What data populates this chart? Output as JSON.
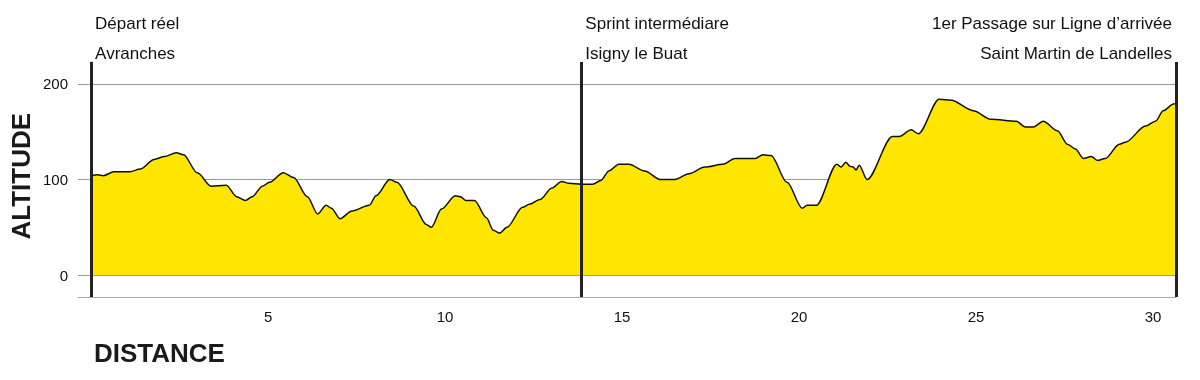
{
  "chart_data": {
    "type": "area",
    "xlabel": "DISTANCE",
    "ylabel": "ALTITUDE",
    "xlim": [
      -0.37,
      30.65
    ],
    "ylim": [
      -23,
      223
    ],
    "xticks": [
      5,
      10,
      15,
      20,
      25,
      30
    ],
    "yticks": [
      0,
      100,
      200
    ],
    "grid": "y",
    "marker": "none",
    "line_style": "solid",
    "series": [
      {
        "color": "#ffe600",
        "x": [
          0,
          0.18,
          0.35,
          0.64,
          1.1,
          1.39,
          1.78,
          2.07,
          2.41,
          2.61,
          3.0,
          3.39,
          3.82,
          4.11,
          4.36,
          4.55,
          4.84,
          5.04,
          5.43,
          5.72,
          6.11,
          6.4,
          6.64,
          6.79,
          7.03,
          7.37,
          7.86,
          8.05,
          8.44,
          8.64,
          9.12,
          9.47,
          9.61,
          9.9,
          10.29,
          10.44,
          10.58,
          10.83,
          11.17,
          11.36,
          11.54,
          11.75,
          12.19,
          12.38,
          12.68,
          13.02,
          13.29,
          13.5,
          13.85,
          14.17,
          14.4,
          14.63,
          14.91,
          15.19,
          15.64,
          16.07,
          16.49,
          16.89,
          17.34,
          17.85,
          18.19,
          18.76,
          18.98,
          19.21,
          19.66,
          20.09,
          20.23,
          20.49,
          21.07,
          21.19,
          21.32,
          21.44,
          21.53,
          21.61,
          21.7,
          21.92,
          22.64,
          22.83,
          23.17,
          23.37,
          23.96,
          24.3,
          24.92,
          25.43,
          26.14,
          26.39,
          26.62,
          26.9,
          27.3,
          27.58,
          27.81,
          28.03,
          28.26,
          28.43,
          28.65,
          29.05,
          29.22,
          29.79,
          30.07,
          30.29,
          30.58,
          30.65
        ],
        "values": [
          104,
          105,
          104,
          108,
          108,
          111,
          121,
          124,
          128,
          126,
          107,
          93,
          94,
          82,
          78,
          82,
          93,
          97,
          107,
          102,
          82,
          64,
          73,
          70,
          59,
          67,
          73,
          83,
          100,
          97,
          72,
          53,
          50,
          69,
          83,
          82,
          78,
          78,
          60,
          47,
          44,
          50,
          71,
          74,
          79,
          91,
          98,
          96,
          95,
          95,
          99,
          109,
          116,
          116,
          109,
          100,
          100,
          106,
          113,
          116,
          122,
          122,
          126,
          125,
          97,
          70,
          73,
          73,
          116,
          113,
          118,
          114,
          113,
          110,
          115,
          100,
          145,
          145,
          152,
          148,
          184,
          183,
          172,
          163,
          161,
          155,
          155,
          161,
          151,
          137,
          132,
          122,
          124,
          120,
          122,
          137,
          139,
          156,
          161,
          172,
          179,
          180
        ]
      }
    ],
    "ref_lines": [
      {
        "axis": "x",
        "value": 0,
        "label": "Départ réel\nAvranches",
        "color": "#222222"
      },
      {
        "axis": "x",
        "value": 13.85,
        "label": "Sprint intermédiare\nIsigny le Buat",
        "color": "#222222"
      },
      {
        "axis": "x",
        "value": 30.65,
        "label": "1er Passage sur Ligne d’arrivée\nSaint Martin de Landelles",
        "color": "#222222"
      }
    ]
  }
}
